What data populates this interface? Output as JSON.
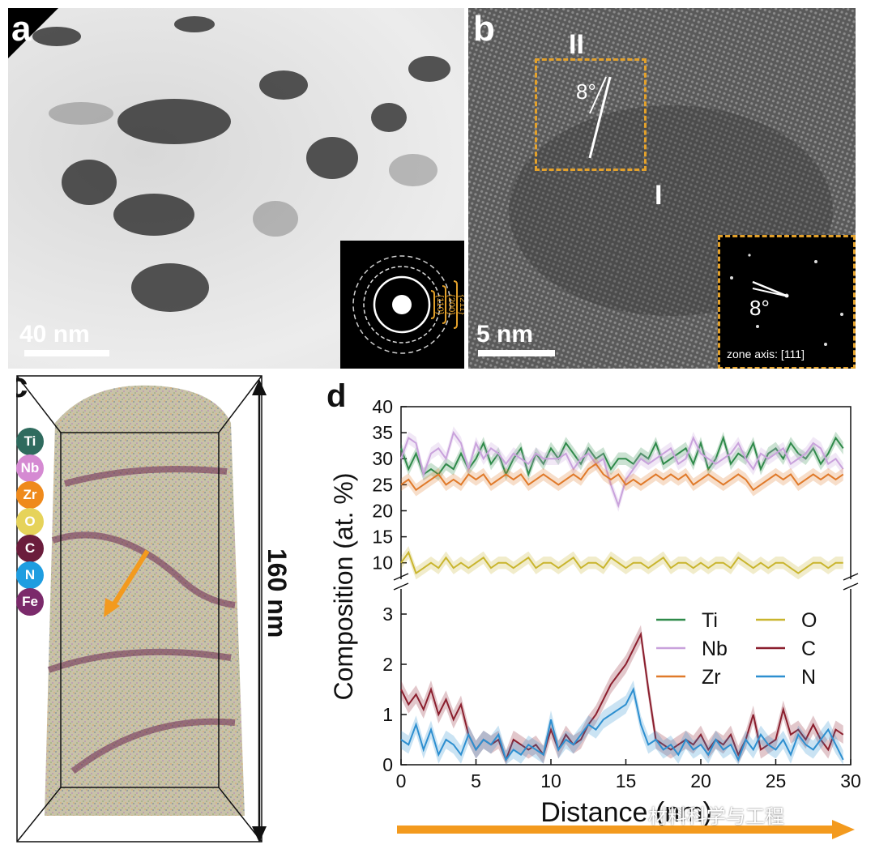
{
  "panel_a": {
    "label": "a",
    "scale_bar": "40 nm",
    "diffraction_rings": [
      "{211}",
      "{200}",
      "{110}"
    ]
  },
  "panel_b": {
    "label": "b",
    "scale_bar": "5 nm",
    "region_II": "II",
    "region_I": "I",
    "angle": "8°",
    "inset_angle": "8°",
    "inset_caption": "zone axis: [111]"
  },
  "panel_c": {
    "label": "c",
    "length_label": "160 nm",
    "elements": [
      {
        "symbol": "Ti",
        "color": "#2f6b5e"
      },
      {
        "symbol": "Nb",
        "color": "#d58ad2"
      },
      {
        "symbol": "Zr",
        "color": "#ef8a1c"
      },
      {
        "symbol": "O",
        "color": "#e6d35a"
      },
      {
        "symbol": "C",
        "color": "#6b1d3c"
      },
      {
        "symbol": "N",
        "color": "#1e9de0"
      },
      {
        "symbol": "Fe",
        "color": "#7b2a6b"
      }
    ]
  },
  "watermark": "材料科学与工程",
  "chart_data": {
    "label": "d",
    "type": "line",
    "xlabel": "Distance (nm)",
    "ylabel": "Composition (at. %)",
    "xlim": [
      0,
      30
    ],
    "x_ticks": [
      0,
      5,
      10,
      15,
      20,
      25,
      30
    ],
    "upper_ylim": [
      7,
      40
    ],
    "upper_ticks": [
      10,
      15,
      20,
      25,
      30,
      35,
      40
    ],
    "lower_ylim": [
      0,
      3.5
    ],
    "lower_ticks": [
      0,
      1,
      2,
      3
    ],
    "broken_axis": true,
    "legend_position": "lower-right",
    "x": [
      0,
      0.5,
      1,
      1.5,
      2,
      2.5,
      3,
      3.5,
      4,
      4.5,
      5,
      5.5,
      6,
      6.5,
      7,
      7.5,
      8,
      8.5,
      9,
      9.5,
      10,
      10.5,
      11,
      11.5,
      12,
      12.5,
      13,
      13.5,
      14,
      14.5,
      15,
      15.5,
      16,
      16.5,
      17,
      17.5,
      18,
      18.5,
      19,
      19.5,
      20,
      20.5,
      21,
      21.5,
      22,
      22.5,
      23,
      23.5,
      24,
      24.5,
      25,
      25.5,
      26,
      26.5,
      27,
      27.5,
      28,
      28.5,
      29,
      29.5
    ],
    "series": [
      {
        "name": "Ti",
        "color": "#2f8a4a",
        "panel": "upper",
        "values": [
          32,
          28,
          31,
          27,
          28,
          27,
          29,
          28,
          31,
          28,
          30,
          33,
          29,
          31,
          27,
          30,
          32,
          27,
          31,
          29,
          32,
          30,
          33,
          31,
          29,
          32,
          30,
          31,
          28,
          30,
          30,
          29,
          31,
          30,
          33,
          29,
          30,
          31,
          32,
          29,
          33,
          28,
          30,
          34,
          29,
          31,
          30,
          33,
          28,
          31,
          32,
          30,
          33,
          31,
          30,
          32,
          29,
          31,
          34,
          32
        ]
      },
      {
        "name": "Nb",
        "color": "#c9a2dc",
        "panel": "upper",
        "values": [
          30,
          34,
          33,
          27,
          31,
          32,
          30,
          35,
          33,
          28,
          33,
          30,
          32,
          31,
          29,
          31,
          30,
          29,
          31,
          30,
          30,
          30,
          31,
          28,
          30,
          31,
          29,
          30,
          25,
          21,
          26,
          28,
          30,
          29,
          30,
          31,
          32,
          29,
          30,
          34,
          31,
          30,
          29,
          30,
          31,
          33,
          30,
          28,
          31,
          30,
          31,
          32,
          29,
          30,
          31,
          33,
          32,
          29,
          30,
          28
        ]
      },
      {
        "name": "Zr",
        "color": "#e07a2a",
        "panel": "upper",
        "values": [
          25,
          26,
          24,
          25,
          26,
          27,
          25,
          26,
          25,
          27,
          26,
          27,
          25,
          26,
          27,
          26,
          27,
          25,
          26,
          27,
          26,
          25,
          26,
          27,
          26,
          28,
          29,
          27,
          26,
          27,
          25,
          26,
          25,
          26,
          27,
          26,
          27,
          26,
          27,
          25,
          26,
          27,
          26,
          25,
          26,
          27,
          26,
          24,
          25,
          26,
          27,
          26,
          27,
          25,
          26,
          27,
          26,
          27,
          26,
          27
        ]
      },
      {
        "name": "O",
        "color": "#c9b52e",
        "panel": "upper",
        "values": [
          10,
          12,
          8,
          9,
          10,
          9,
          11,
          9,
          10,
          9,
          10,
          11,
          9,
          10,
          10,
          9,
          10,
          11,
          9,
          10,
          10,
          9,
          10,
          11,
          9,
          10,
          10,
          9,
          11,
          10,
          9,
          10,
          10,
          9,
          10,
          11,
          9,
          10,
          10,
          9,
          10,
          9,
          10,
          10,
          9,
          11,
          10,
          9,
          10,
          9,
          10,
          10,
          9,
          8,
          9,
          10,
          10,
          9,
          10,
          10
        ]
      },
      {
        "name": "C",
        "color": "#8b1f2e",
        "panel": "lower",
        "values": [
          1.5,
          1.2,
          1.4,
          1.1,
          1.5,
          1.0,
          1.3,
          0.9,
          1.2,
          0.6,
          0.3,
          0.5,
          0.4,
          0.5,
          0.1,
          0.5,
          0.4,
          0.3,
          0.4,
          0.2,
          0.7,
          0.3,
          0.6,
          0.4,
          0.5,
          0.8,
          1.0,
          1.3,
          1.6,
          1.8,
          2.0,
          2.3,
          2.6,
          1.5,
          0.5,
          0.4,
          0.3,
          0.4,
          0.5,
          0.4,
          0.6,
          0.3,
          0.5,
          0.4,
          0.6,
          0.2,
          0.5,
          1.0,
          0.3,
          0.4,
          0.5,
          1.1,
          0.6,
          0.7,
          0.5,
          0.8,
          0.5,
          0.3,
          0.7,
          0.6
        ]
      },
      {
        "name": "N",
        "color": "#2d8fd0",
        "panel": "lower",
        "values": [
          0.5,
          0.4,
          0.8,
          0.3,
          0.7,
          0.2,
          0.5,
          0.4,
          0.2,
          0.6,
          0.3,
          0.5,
          0.4,
          0.6,
          0.1,
          0.3,
          0.2,
          0.4,
          0.3,
          0.2,
          0.9,
          0.3,
          0.5,
          0.4,
          0.6,
          0.8,
          0.7,
          0.9,
          1.0,
          1.1,
          1.2,
          1.5,
          0.8,
          0.4,
          0.5,
          0.3,
          0.4,
          0.2,
          0.5,
          0.3,
          0.4,
          0.2,
          0.5,
          0.3,
          0.4,
          0.1,
          0.5,
          0.3,
          0.6,
          0.4,
          0.3,
          0.5,
          0.2,
          0.6,
          0.4,
          0.3,
          0.5,
          0.7,
          0.4,
          0.1
        ]
      }
    ]
  }
}
